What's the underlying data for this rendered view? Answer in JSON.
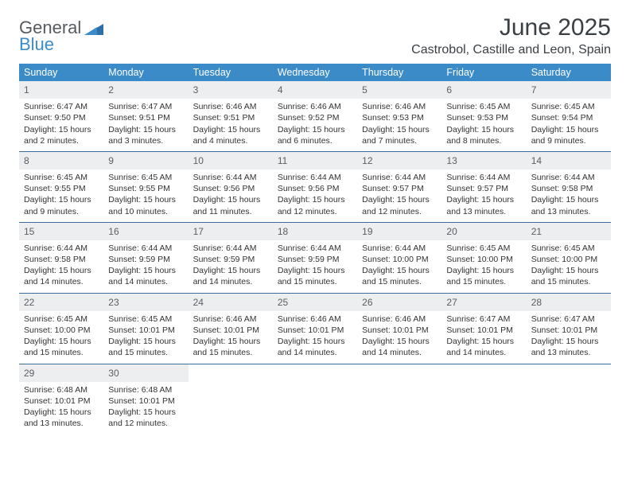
{
  "brand": {
    "general": "General",
    "blue": "Blue"
  },
  "title": "June 2025",
  "location": "Castrobol, Castille and Leon, Spain",
  "header_bg": "#3b8bc9",
  "weekdays": [
    "Sunday",
    "Monday",
    "Tuesday",
    "Wednesday",
    "Thursday",
    "Friday",
    "Saturday"
  ],
  "weeks": [
    [
      {
        "n": "1",
        "sr": "Sunrise: 6:47 AM",
        "ss": "Sunset: 9:50 PM",
        "d1": "Daylight: 15 hours",
        "d2": "and 2 minutes."
      },
      {
        "n": "2",
        "sr": "Sunrise: 6:47 AM",
        "ss": "Sunset: 9:51 PM",
        "d1": "Daylight: 15 hours",
        "d2": "and 3 minutes."
      },
      {
        "n": "3",
        "sr": "Sunrise: 6:46 AM",
        "ss": "Sunset: 9:51 PM",
        "d1": "Daylight: 15 hours",
        "d2": "and 4 minutes."
      },
      {
        "n": "4",
        "sr": "Sunrise: 6:46 AM",
        "ss": "Sunset: 9:52 PM",
        "d1": "Daylight: 15 hours",
        "d2": "and 6 minutes."
      },
      {
        "n": "5",
        "sr": "Sunrise: 6:46 AM",
        "ss": "Sunset: 9:53 PM",
        "d1": "Daylight: 15 hours",
        "d2": "and 7 minutes."
      },
      {
        "n": "6",
        "sr": "Sunrise: 6:45 AM",
        "ss": "Sunset: 9:53 PM",
        "d1": "Daylight: 15 hours",
        "d2": "and 8 minutes."
      },
      {
        "n": "7",
        "sr": "Sunrise: 6:45 AM",
        "ss": "Sunset: 9:54 PM",
        "d1": "Daylight: 15 hours",
        "d2": "and 9 minutes."
      }
    ],
    [
      {
        "n": "8",
        "sr": "Sunrise: 6:45 AM",
        "ss": "Sunset: 9:55 PM",
        "d1": "Daylight: 15 hours",
        "d2": "and 9 minutes."
      },
      {
        "n": "9",
        "sr": "Sunrise: 6:45 AM",
        "ss": "Sunset: 9:55 PM",
        "d1": "Daylight: 15 hours",
        "d2": "and 10 minutes."
      },
      {
        "n": "10",
        "sr": "Sunrise: 6:44 AM",
        "ss": "Sunset: 9:56 PM",
        "d1": "Daylight: 15 hours",
        "d2": "and 11 minutes."
      },
      {
        "n": "11",
        "sr": "Sunrise: 6:44 AM",
        "ss": "Sunset: 9:56 PM",
        "d1": "Daylight: 15 hours",
        "d2": "and 12 minutes."
      },
      {
        "n": "12",
        "sr": "Sunrise: 6:44 AM",
        "ss": "Sunset: 9:57 PM",
        "d1": "Daylight: 15 hours",
        "d2": "and 12 minutes."
      },
      {
        "n": "13",
        "sr": "Sunrise: 6:44 AM",
        "ss": "Sunset: 9:57 PM",
        "d1": "Daylight: 15 hours",
        "d2": "and 13 minutes."
      },
      {
        "n": "14",
        "sr": "Sunrise: 6:44 AM",
        "ss": "Sunset: 9:58 PM",
        "d1": "Daylight: 15 hours",
        "d2": "and 13 minutes."
      }
    ],
    [
      {
        "n": "15",
        "sr": "Sunrise: 6:44 AM",
        "ss": "Sunset: 9:58 PM",
        "d1": "Daylight: 15 hours",
        "d2": "and 14 minutes."
      },
      {
        "n": "16",
        "sr": "Sunrise: 6:44 AM",
        "ss": "Sunset: 9:59 PM",
        "d1": "Daylight: 15 hours",
        "d2": "and 14 minutes."
      },
      {
        "n": "17",
        "sr": "Sunrise: 6:44 AM",
        "ss": "Sunset: 9:59 PM",
        "d1": "Daylight: 15 hours",
        "d2": "and 14 minutes."
      },
      {
        "n": "18",
        "sr": "Sunrise: 6:44 AM",
        "ss": "Sunset: 9:59 PM",
        "d1": "Daylight: 15 hours",
        "d2": "and 15 minutes."
      },
      {
        "n": "19",
        "sr": "Sunrise: 6:44 AM",
        "ss": "Sunset: 10:00 PM",
        "d1": "Daylight: 15 hours",
        "d2": "and 15 minutes."
      },
      {
        "n": "20",
        "sr": "Sunrise: 6:45 AM",
        "ss": "Sunset: 10:00 PM",
        "d1": "Daylight: 15 hours",
        "d2": "and 15 minutes."
      },
      {
        "n": "21",
        "sr": "Sunrise: 6:45 AM",
        "ss": "Sunset: 10:00 PM",
        "d1": "Daylight: 15 hours",
        "d2": "and 15 minutes."
      }
    ],
    [
      {
        "n": "22",
        "sr": "Sunrise: 6:45 AM",
        "ss": "Sunset: 10:00 PM",
        "d1": "Daylight: 15 hours",
        "d2": "and 15 minutes."
      },
      {
        "n": "23",
        "sr": "Sunrise: 6:45 AM",
        "ss": "Sunset: 10:01 PM",
        "d1": "Daylight: 15 hours",
        "d2": "and 15 minutes."
      },
      {
        "n": "24",
        "sr": "Sunrise: 6:46 AM",
        "ss": "Sunset: 10:01 PM",
        "d1": "Daylight: 15 hours",
        "d2": "and 15 minutes."
      },
      {
        "n": "25",
        "sr": "Sunrise: 6:46 AM",
        "ss": "Sunset: 10:01 PM",
        "d1": "Daylight: 15 hours",
        "d2": "and 14 minutes."
      },
      {
        "n": "26",
        "sr": "Sunrise: 6:46 AM",
        "ss": "Sunset: 10:01 PM",
        "d1": "Daylight: 15 hours",
        "d2": "and 14 minutes."
      },
      {
        "n": "27",
        "sr": "Sunrise: 6:47 AM",
        "ss": "Sunset: 10:01 PM",
        "d1": "Daylight: 15 hours",
        "d2": "and 14 minutes."
      },
      {
        "n": "28",
        "sr": "Sunrise: 6:47 AM",
        "ss": "Sunset: 10:01 PM",
        "d1": "Daylight: 15 hours",
        "d2": "and 13 minutes."
      }
    ],
    [
      {
        "n": "29",
        "sr": "Sunrise: 6:48 AM",
        "ss": "Sunset: 10:01 PM",
        "d1": "Daylight: 15 hours",
        "d2": "and 13 minutes."
      },
      {
        "n": "30",
        "sr": "Sunrise: 6:48 AM",
        "ss": "Sunset: 10:01 PM",
        "d1": "Daylight: 15 hours",
        "d2": "and 12 minutes."
      },
      null,
      null,
      null,
      null,
      null
    ]
  ]
}
